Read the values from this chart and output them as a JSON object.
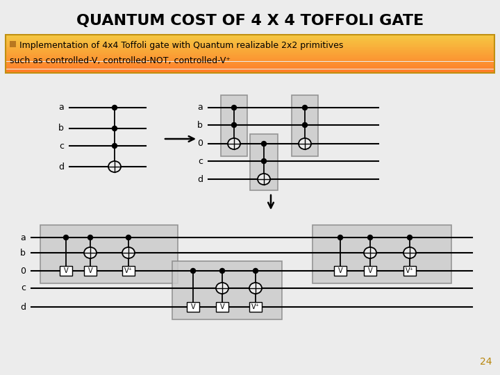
{
  "title": "QUANTUM COST OF 4 X 4 TOFFOLI GATE",
  "subtitle_line1": "  Implementation of 4x4 Toffoli gate with Quantum realizable 2x2 primitives",
  "subtitle_line2": "such as controlled-V, controlled-NOT, controlled-V⁺",
  "bullet_color": "#b87820",
  "subtitle_bg_top": "#f5c842",
  "subtitle_bg_bot": "#e8a820",
  "subtitle_border": "#c8a020",
  "page_num": "24",
  "bg_color": "#ececec",
  "gate_fill": "#d0d0d0",
  "gate_fill2": "#b8b8b8",
  "gate_edge": "#888888"
}
